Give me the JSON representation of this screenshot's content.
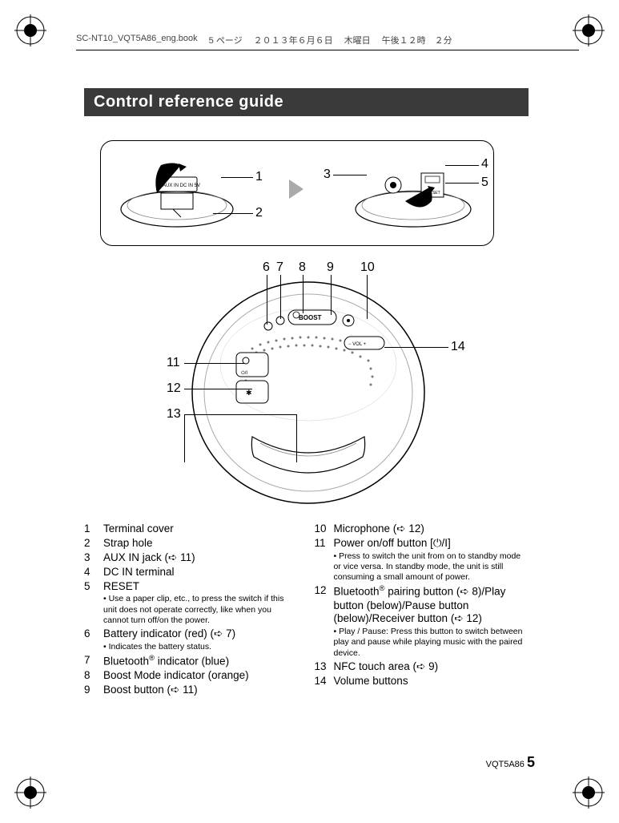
{
  "header": {
    "file": "SC-NT10_VQT5A86_eng.book",
    "page_jp": "5 ページ",
    "date_jp": "２０１３年６月６日",
    "day_jp": "木曜日",
    "time_jp": "午後１２時　２分"
  },
  "section_title": "Control reference guide",
  "callouts": [
    "1",
    "2",
    "3",
    "4",
    "5",
    "6",
    "7",
    "8",
    "9",
    "10",
    "11",
    "12",
    "13",
    "14"
  ],
  "left_items": [
    {
      "n": "1",
      "t": "Terminal cover"
    },
    {
      "n": "2",
      "t": "Strap hole"
    },
    {
      "n": "3",
      "t": "AUX IN jack (➪ 11)"
    },
    {
      "n": "4",
      "t": "DC IN terminal"
    },
    {
      "n": "5",
      "t": "RESET",
      "subs": [
        "Use a paper clip, etc., to press the switch if this unit does not operate correctly, like when you cannot turn off/on the power."
      ]
    },
    {
      "n": "6",
      "t": "Battery indicator (red) (➪ 7)",
      "subs": [
        "Indicates the battery status."
      ]
    },
    {
      "n": "7",
      "t": "Bluetooth® indicator (blue)",
      "sup": true
    },
    {
      "n": "8",
      "t": "Boost Mode indicator (orange)"
    },
    {
      "n": "9",
      "t": "Boost button (➪ 11)"
    }
  ],
  "right_items": [
    {
      "n": "10",
      "t": "Microphone (➪ 12)"
    },
    {
      "n": "11",
      "t": "Power on/off button [⏻/I]",
      "subs": [
        "Press to switch the unit from on to standby mode or vice versa. In standby mode, the unit is still consuming a small amount of power."
      ]
    },
    {
      "n": "12",
      "t": "Bluetooth® pairing button (➪ 8)/Play button (below)/Pause button (below)/Receiver button (➪ 12)",
      "sup": true,
      "subs": [
        "Play / Pause: Press this button to switch between play and pause while playing music with the paired  device."
      ]
    },
    {
      "n": "13",
      "t": "NFC touch area (➪ 9)"
    },
    {
      "n": "14",
      "t": "Volume buttons"
    }
  ],
  "footer": {
    "code": "VQT5A86",
    "page": "5"
  },
  "colors": {
    "section_bg": "#3a3a3a",
    "section_fg": "#ffffff",
    "text": "#000000",
    "triangle": "#aaaaaa"
  }
}
